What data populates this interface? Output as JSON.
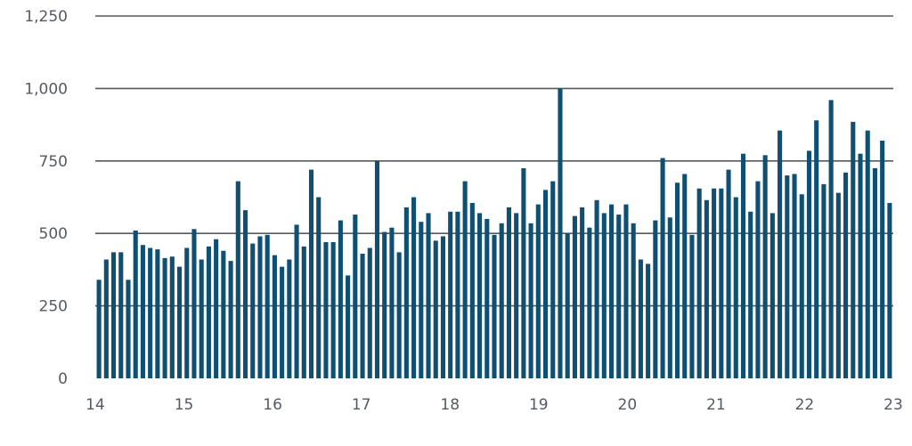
{
  "chart_data": {
    "type": "bar",
    "title": "",
    "xlabel": "",
    "ylabel": "",
    "ylim": [
      0,
      1250
    ],
    "yticks": [
      0,
      250,
      500,
      750,
      1000,
      1250
    ],
    "ytick_labels": [
      "0",
      "250",
      "500",
      "750",
      "1,000",
      "1,250"
    ],
    "xlim": [
      14,
      23
    ],
    "xticks": [
      14,
      15,
      16,
      17,
      18,
      19,
      20,
      21,
      22,
      23
    ],
    "xtick_labels": [
      "14",
      "15",
      "16",
      "17",
      "18",
      "19",
      "20",
      "21",
      "22",
      "23"
    ],
    "grid": true,
    "bar_color": "#0f4f72",
    "values": [
      340,
      410,
      435,
      435,
      340,
      510,
      460,
      450,
      445,
      415,
      420,
      385,
      450,
      515,
      410,
      455,
      480,
      440,
      405,
      680,
      580,
      465,
      490,
      495,
      425,
      385,
      410,
      530,
      455,
      720,
      625,
      470,
      470,
      545,
      355,
      565,
      430,
      450,
      750,
      505,
      520,
      435,
      590,
      625,
      540,
      570,
      475,
      490,
      575,
      575,
      680,
      605,
      570,
      550,
      495,
      535,
      590,
      570,
      725,
      535,
      600,
      650,
      680,
      1000,
      500,
      560,
      590,
      520,
      615,
      570,
      600,
      565,
      600,
      535,
      410,
      395,
      545,
      760,
      555,
      675,
      705,
      495,
      655,
      615,
      655,
      655,
      720,
      625,
      775,
      575,
      680,
      770,
      570,
      855,
      700,
      705,
      635,
      785,
      890,
      670,
      960,
      640,
      710,
      885,
      775,
      855,
      725,
      820,
      605
    ]
  }
}
